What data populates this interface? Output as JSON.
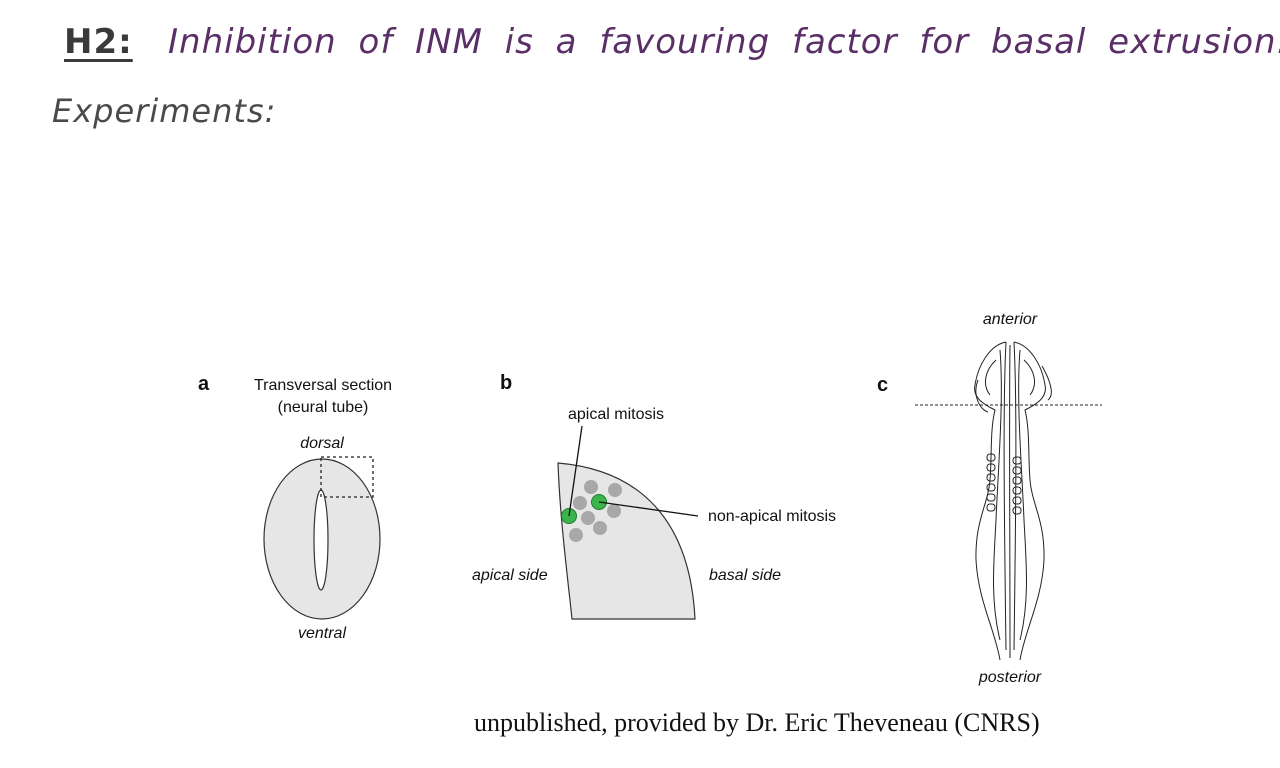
{
  "slide": {
    "heading_prefix": "H2:",
    "heading_text": "Inhibition of INM is a favouring factor for basal extrusion.",
    "subheading": "Experiments:"
  },
  "figure": {
    "panel_a": {
      "letter": "a",
      "title_line1": "Transversal section",
      "title_line2": "(neural tube)",
      "top_label": "dorsal",
      "bottom_label": "ventral"
    },
    "panel_b": {
      "letter": "b",
      "label_apical_mitosis": "apical mitosis",
      "label_non_apical_mitosis": "non-apical mitosis",
      "label_apical_side": "apical side",
      "label_basal_side": "basal side"
    },
    "panel_c": {
      "letter": "c",
      "top_label": "anterior",
      "bottom_label": "posterior"
    },
    "colors": {
      "tissue_fill": "#e6e6e6",
      "nucleus_gray": "#a8a8a8",
      "mitosis_green": "#3cb44b",
      "title_purple": "#5a2e66"
    }
  },
  "credit": "unpublished, provided by Dr. Eric Theveneau (CNRS)"
}
